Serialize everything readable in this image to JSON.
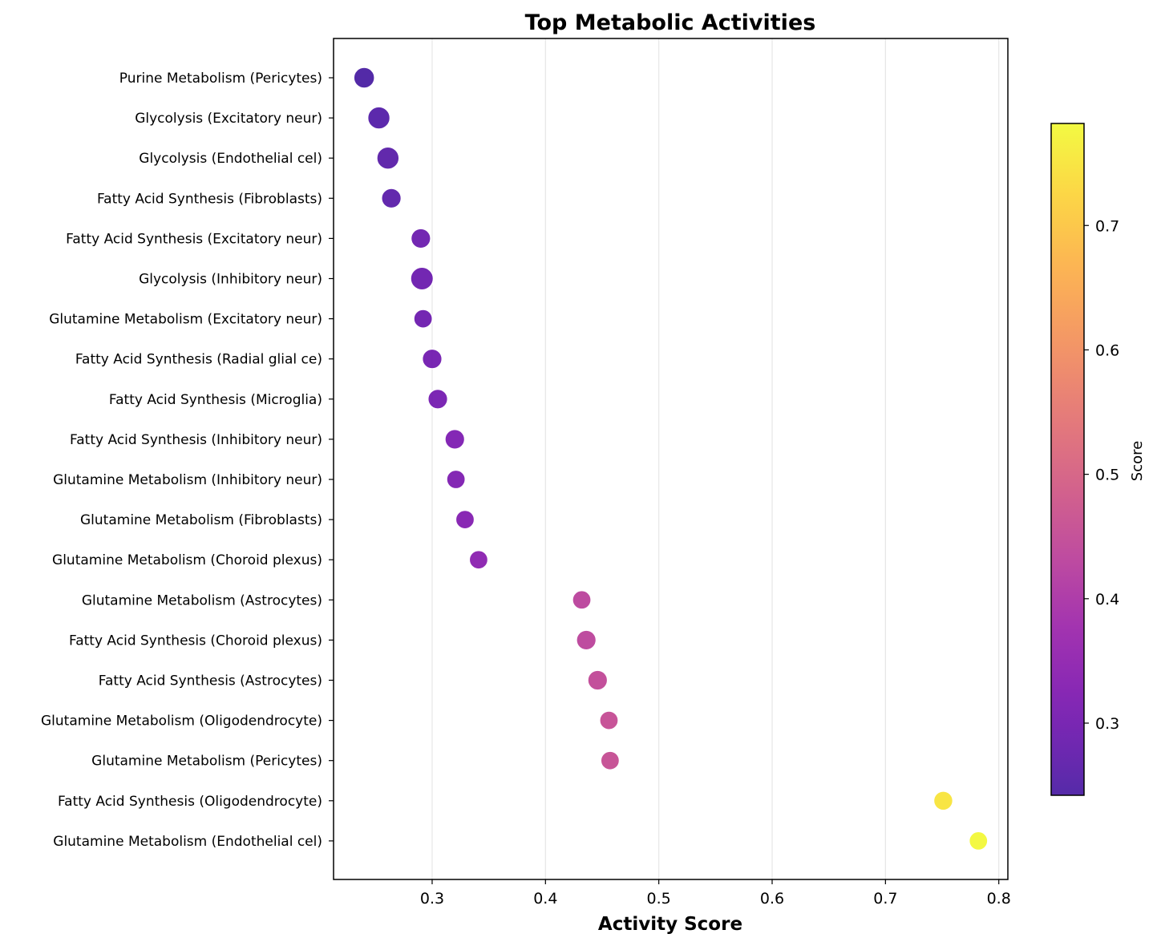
{
  "chart_data": {
    "type": "scatter",
    "title": "Top Metabolic Activities",
    "xlabel": "Activity Score",
    "ylabel": "",
    "xlim": [
      0.213,
      0.808
    ],
    "xticks": [
      0.3,
      0.4,
      0.5,
      0.6,
      0.7,
      0.8
    ],
    "xtick_labels": [
      "0.3",
      "0.4",
      "0.5",
      "0.6",
      "0.7",
      "0.8"
    ],
    "grid": "vertical",
    "colormap": "plasma",
    "colorbar": {
      "label": "Score",
      "range": [
        0.242,
        0.782
      ],
      "ticks": [
        0.3,
        0.4,
        0.5,
        0.6,
        0.7
      ],
      "tick_labels": [
        "0.3",
        "0.4",
        "0.5",
        "0.6",
        "0.7"
      ]
    },
    "points": [
      {
        "label": "Purine Metabolism (Pericytes)",
        "x": 0.24,
        "color_value": 0.24,
        "size": 1.0
      },
      {
        "label": "Glycolysis (Excitatory neur)",
        "x": 0.253,
        "color_value": 0.253,
        "size": 1.15
      },
      {
        "label": "Glycolysis (Endothelial cel)",
        "x": 0.261,
        "color_value": 0.261,
        "size": 1.15
      },
      {
        "label": "Fatty Acid Synthesis (Fibroblasts)",
        "x": 0.264,
        "color_value": 0.264,
        "size": 0.9
      },
      {
        "label": "Fatty Acid Synthesis (Excitatory neur)",
        "x": 0.29,
        "color_value": 0.29,
        "size": 0.9
      },
      {
        "label": "Glycolysis (Inhibitory neur)",
        "x": 0.291,
        "color_value": 0.291,
        "size": 1.2
      },
      {
        "label": "Glutamine Metabolism (Excitatory neur)",
        "x": 0.292,
        "color_value": 0.292,
        "size": 0.8
      },
      {
        "label": "Fatty Acid Synthesis (Radial glial ce)",
        "x": 0.3,
        "color_value": 0.3,
        "size": 0.9
      },
      {
        "label": "Fatty Acid Synthesis (Microglia)",
        "x": 0.305,
        "color_value": 0.305,
        "size": 0.9
      },
      {
        "label": "Fatty Acid Synthesis (Inhibitory neur)",
        "x": 0.32,
        "color_value": 0.32,
        "size": 0.9
      },
      {
        "label": "Glutamine Metabolism (Inhibitory neur)",
        "x": 0.321,
        "color_value": 0.321,
        "size": 0.8
      },
      {
        "label": "Glutamine Metabolism (Fibroblasts)",
        "x": 0.329,
        "color_value": 0.329,
        "size": 0.8
      },
      {
        "label": "Glutamine Metabolism (Choroid plexus)",
        "x": 0.341,
        "color_value": 0.341,
        "size": 0.8
      },
      {
        "label": "Glutamine Metabolism (Astrocytes)",
        "x": 0.432,
        "color_value": 0.432,
        "size": 0.8
      },
      {
        "label": "Fatty Acid Synthesis (Choroid plexus)",
        "x": 0.436,
        "color_value": 0.436,
        "size": 0.9
      },
      {
        "label": "Fatty Acid Synthesis (Astrocytes)",
        "x": 0.446,
        "color_value": 0.446,
        "size": 0.9
      },
      {
        "label": "Glutamine Metabolism (Oligodendrocyte)",
        "x": 0.456,
        "color_value": 0.456,
        "size": 0.8
      },
      {
        "label": "Glutamine Metabolism (Pericytes)",
        "x": 0.457,
        "color_value": 0.457,
        "size": 0.8
      },
      {
        "label": "Fatty Acid Synthesis (Oligodendrocyte)",
        "x": 0.751,
        "color_value": 0.751,
        "size": 0.85
      },
      {
        "label": "Glutamine Metabolism (Endothelial cel)",
        "x": 0.782,
        "color_value": 0.782,
        "size": 0.8
      }
    ]
  }
}
